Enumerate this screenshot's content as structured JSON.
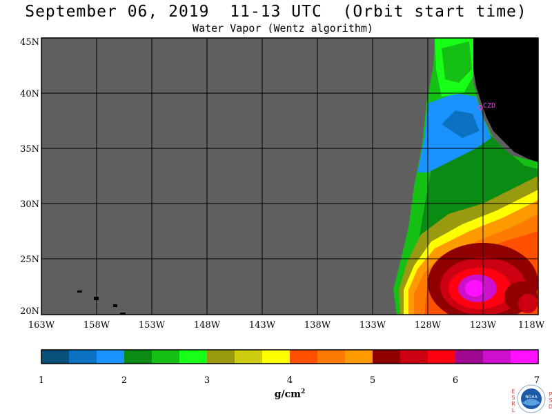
{
  "header": {
    "title": "September 06, 2019  11-13 UTC  (Orbit start time)",
    "subtitle": "Water Vapor (Wentz algorithm)"
  },
  "map": {
    "lat_labels": [
      "45N",
      "40N",
      "35N",
      "30N",
      "25N",
      "20N"
    ],
    "lon_labels": [
      "163W",
      "158W",
      "153W",
      "148W",
      "143W",
      "138W",
      "133W",
      "128W",
      "123W",
      "118W"
    ],
    "station_label": "CZD",
    "colors": {
      "no_data": "#5f5f5f",
      "land": "#000000",
      "grid": "#000000",
      "station": "#e040e0"
    }
  },
  "colorbar": {
    "tick_labels": [
      "1",
      "2",
      "3",
      "4",
      "5",
      "6",
      "7"
    ],
    "unit_base": "g/cm",
    "unit_exp": "2",
    "colors": [
      "#08507a",
      "#0a72c0",
      "#1a92ff",
      "#0a8c14",
      "#14c014",
      "#18ff18",
      "#9a9a10",
      "#cccc10",
      "#ffff00",
      "#ff5000",
      "#ff7a00",
      "#ff9a00",
      "#900000",
      "#cc0010",
      "#ff0010",
      "#a00890",
      "#cc10cc",
      "#ff10ff"
    ]
  },
  "logo": {
    "left_letters": [
      "E",
      "S",
      "R",
      "L"
    ],
    "right_letters": [
      "P",
      "S",
      "D"
    ],
    "text": "NOAA"
  }
}
